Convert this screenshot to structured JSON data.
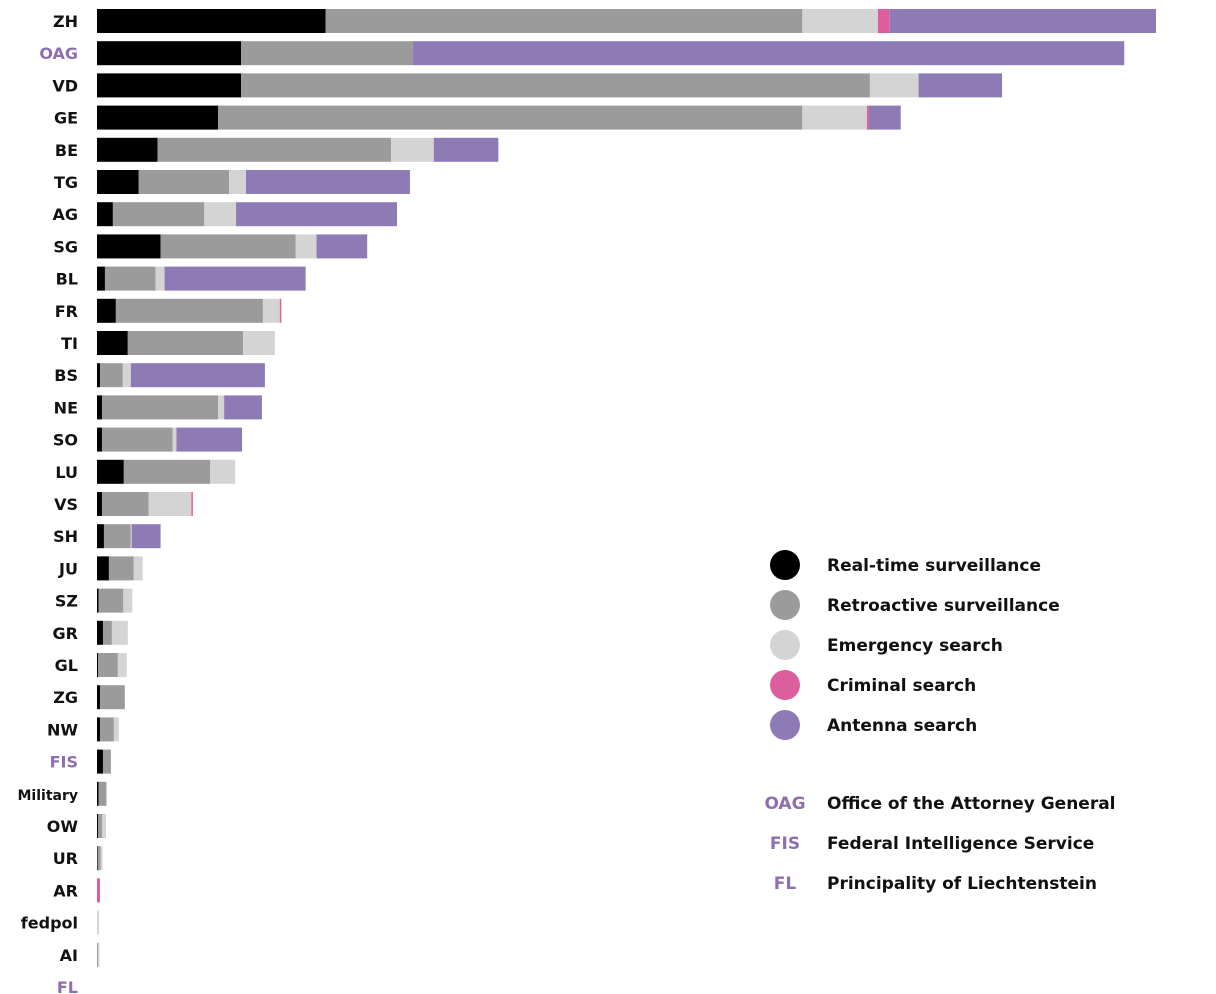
{
  "chart_data": {
    "type": "bar",
    "orientation": "horizontal",
    "stacked": true,
    "categories": [
      "ZH",
      "OAG",
      "VD",
      "GE",
      "BE",
      "TG",
      "AG",
      "SG",
      "BL",
      "FR",
      "TI",
      "BS",
      "NE",
      "SO",
      "LU",
      "VS",
      "SH",
      "JU",
      "SZ",
      "GR",
      "GL",
      "ZG",
      "NW",
      "FIS",
      "Military",
      "OW",
      "UR",
      "AR",
      "fedpol",
      "AI",
      "FL"
    ],
    "highlighted_categories": [
      "OAG",
      "FIS",
      "FL"
    ],
    "series": [
      {
        "name": "Real-time surveillance",
        "color": "#000000",
        "values": [
          2300,
          1450,
          1450,
          1220,
          610,
          420,
          160,
          640,
          80,
          190,
          310,
          30,
          50,
          50,
          270,
          50,
          70,
          120,
          15,
          60,
          10,
          30,
          30,
          60,
          15,
          10,
          5,
          0,
          0,
          0,
          0
        ]
      },
      {
        "name": "Retroactive surveillance",
        "color": "#9b9b9b",
        "values": [
          4800,
          1730,
          6330,
          5880,
          2350,
          910,
          920,
          1360,
          510,
          1480,
          1160,
          230,
          1170,
          710,
          870,
          470,
          270,
          250,
          250,
          90,
          200,
          250,
          140,
          80,
          80,
          40,
          30,
          0,
          0,
          10,
          0
        ]
      },
      {
        "name": "Emergency search",
        "color": "#d4d4d4",
        "values": [
          760,
          0,
          490,
          650,
          430,
          170,
          320,
          210,
          90,
          170,
          320,
          80,
          60,
          40,
          250,
          430,
          10,
          90,
          90,
          160,
          90,
          0,
          50,
          0,
          0,
          40,
          20,
          0,
          20,
          15,
          0
        ]
      },
      {
        "name": "Criminal search",
        "color": "#dd5e9c",
        "values": [
          120,
          0,
          0,
          20,
          0,
          0,
          0,
          0,
          0,
          10,
          0,
          0,
          0,
          0,
          0,
          10,
          0,
          0,
          0,
          0,
          0,
          0,
          0,
          0,
          0,
          0,
          0,
          30,
          0,
          0,
          0
        ]
      },
      {
        "name": "Antenna search",
        "color": "#8e7ab5",
        "values": [
          2680,
          7160,
          840,
          320,
          650,
          1650,
          1620,
          510,
          1420,
          0,
          0,
          1350,
          380,
          660,
          0,
          0,
          290,
          0,
          0,
          0,
          0,
          0,
          0,
          0,
          0,
          0,
          0,
          0,
          0,
          0,
          0
        ]
      }
    ],
    "xlim": [
      0,
      10700
    ],
    "grid": false,
    "legend_position": "right",
    "abbreviations": [
      {
        "abbr": "OAG",
        "meaning": "Office of the Attorney General"
      },
      {
        "abbr": "FIS",
        "meaning": "Federal Intelligence Service"
      },
      {
        "abbr": "FL",
        "meaning": "Principality of Liechtenstein"
      }
    ]
  },
  "colors": {
    "label": "#111111",
    "highlight": "#8e6fb0"
  }
}
